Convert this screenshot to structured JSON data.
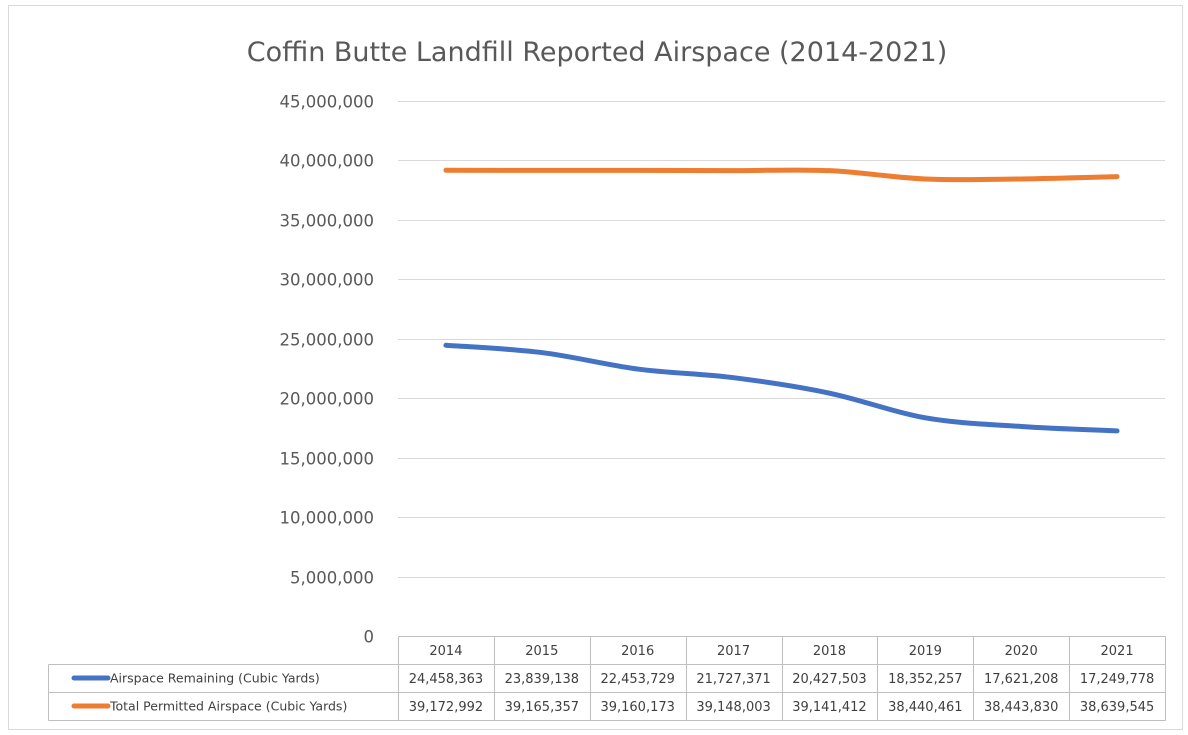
{
  "chart_data": {
    "type": "line",
    "title": "Coffin Butte Landfill Reported Airspace (2014-2021)",
    "categories": [
      "2014",
      "2015",
      "2016",
      "2017",
      "2018",
      "2019",
      "2020",
      "2021"
    ],
    "ylim": [
      0,
      45000000
    ],
    "yticks": [
      "0",
      "5,000,000",
      "10,000,000",
      "15,000,000",
      "20,000,000",
      "25,000,000",
      "30,000,000",
      "35,000,000",
      "40,000,000",
      "45,000,000"
    ],
    "grid": true,
    "legend": "data-table-below",
    "series": [
      {
        "name": "Airspace Remaining (Cubic Yards)",
        "color": "#4472c4",
        "values": [
          24458363,
          23839138,
          22453729,
          21727371,
          20427503,
          18352257,
          17621208,
          17249778
        ],
        "labels": [
          "24,458,363",
          "23,839,138",
          "22,453,729",
          "21,727,371",
          "20,427,503",
          "18,352,257",
          "17,621,208",
          "17,249,778"
        ]
      },
      {
        "name": "Total Permitted Airspace (Cubic Yards)",
        "color": "#ed7d31",
        "values": [
          39172992,
          39165357,
          39160173,
          39148003,
          39141412,
          38440461,
          38443830,
          38639545
        ],
        "labels": [
          "39,172,992",
          "39,165,357",
          "39,160,173",
          "39,148,003",
          "39,141,412",
          "38,440,461",
          "38,443,830",
          "38,639,545"
        ]
      }
    ]
  }
}
